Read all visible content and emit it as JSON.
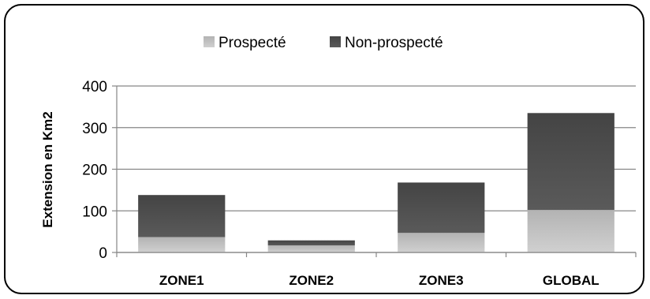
{
  "chart_data": {
    "type": "bar",
    "stacked": true,
    "categories": [
      "ZONE1",
      "ZONE2",
      "ZONE3",
      "GLOBAL"
    ],
    "series": [
      {
        "name": "Prospecté",
        "values": [
          37,
          17,
          47,
          102
        ],
        "color": "#a6a6a6"
      },
      {
        "name": "Non-prospecté",
        "values": [
          101,
          12,
          121,
          233
        ],
        "color": "#595959"
      }
    ],
    "title": "",
    "xlabel": "",
    "ylabel": "Extension en Km2",
    "ylim": [
      0,
      400
    ],
    "yticks": [
      0,
      100,
      200,
      300,
      400
    ],
    "grid": true,
    "legend_position": "top"
  }
}
